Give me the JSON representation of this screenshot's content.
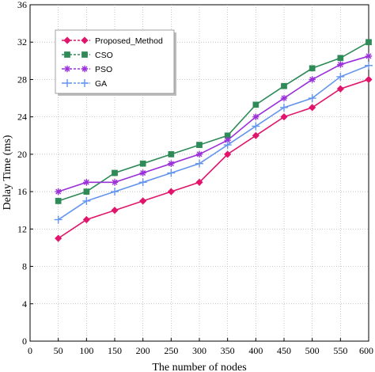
{
  "chart_data": {
    "type": "line",
    "title": "",
    "xlabel": "The number of nodes",
    "ylabel": "Delay Time (ms)",
    "xlim": [
      0,
      600
    ],
    "ylim": [
      0,
      36
    ],
    "xticks": [
      0,
      50,
      100,
      150,
      200,
      250,
      300,
      350,
      400,
      450,
      500,
      550,
      600
    ],
    "yticks": [
      0,
      4,
      8,
      12,
      16,
      20,
      24,
      28,
      32,
      36
    ],
    "grid": true,
    "legend_position": "top-left",
    "x": [
      50,
      100,
      150,
      200,
      250,
      300,
      350,
      400,
      450,
      500,
      550,
      600
    ],
    "series": [
      {
        "name": "Proposed_Method",
        "color": "#e0156b",
        "marker": "diamond",
        "values": [
          11,
          13,
          14,
          15,
          16,
          17,
          20,
          22,
          24,
          25,
          27,
          28
        ]
      },
      {
        "name": "CSO",
        "color": "#2e8b57",
        "marker": "square",
        "values": [
          15,
          16,
          18,
          19,
          20,
          21,
          22,
          25.3,
          27.3,
          29.2,
          30.3,
          32
        ]
      },
      {
        "name": "PSO",
        "color": "#9b30d9",
        "marker": "star",
        "values": [
          16,
          17,
          17,
          18,
          19,
          20,
          21.5,
          24,
          26,
          28,
          29.6,
          30.5
        ]
      },
      {
        "name": "GA",
        "color": "#6495ed",
        "marker": "plus",
        "values": [
          13,
          15,
          16,
          17,
          18,
          19,
          21,
          23,
          25,
          26,
          28.3,
          29.5
        ]
      }
    ]
  }
}
